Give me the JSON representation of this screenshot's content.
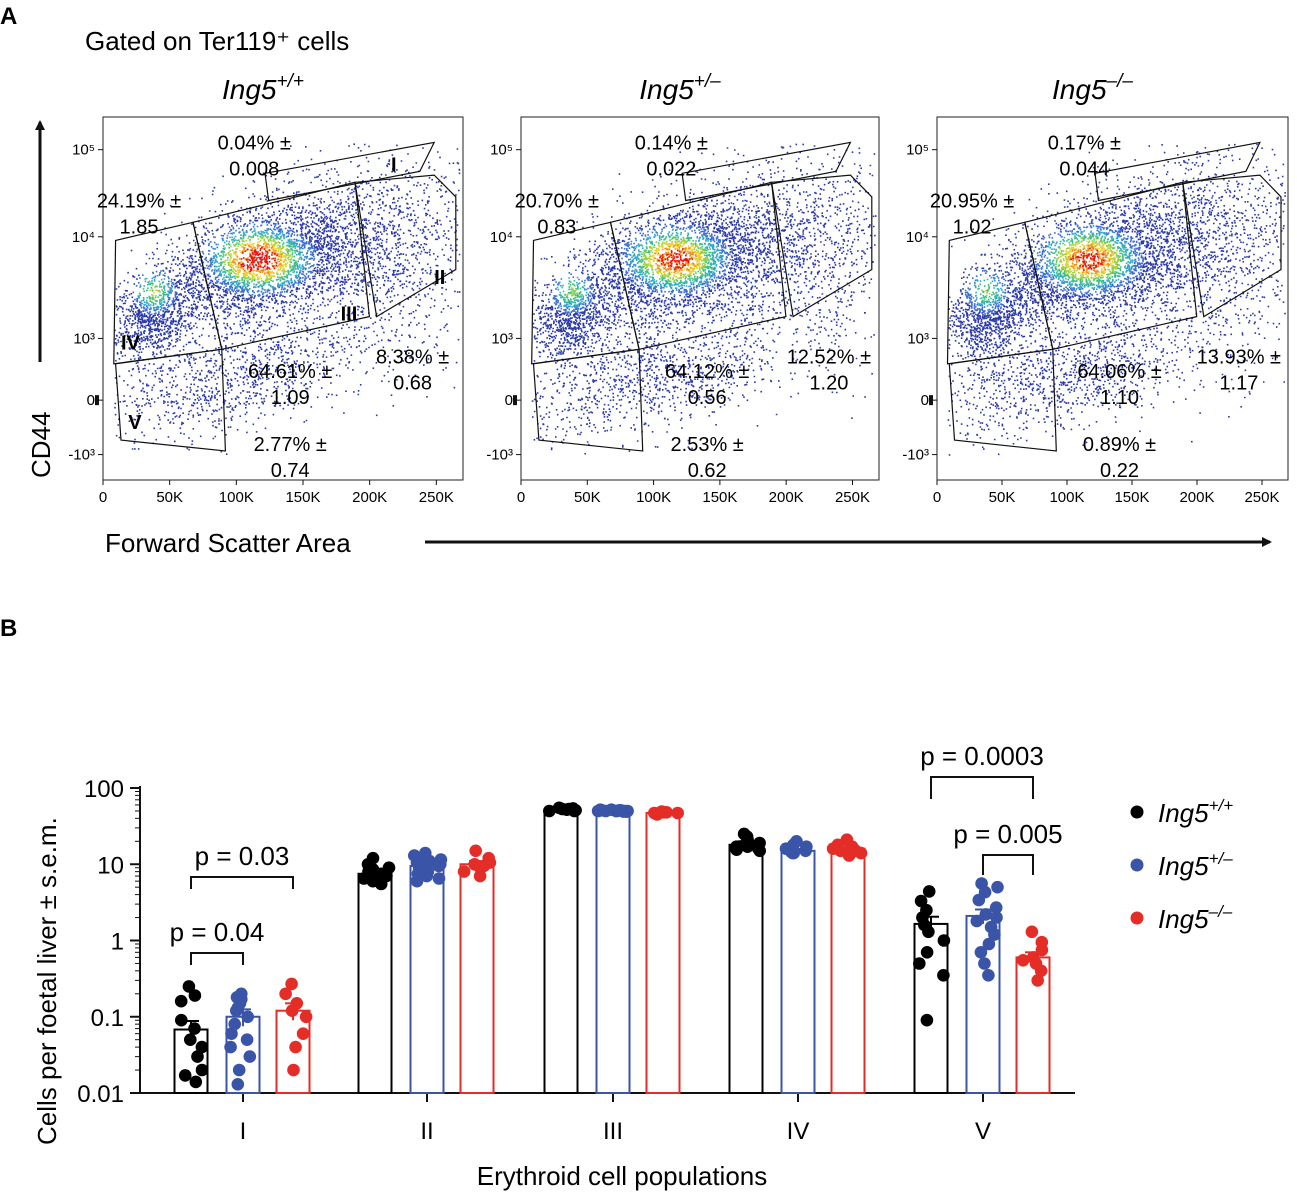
{
  "colors": {
    "wt": "#000000",
    "het": "#3a55a8",
    "ko": "#e52d27",
    "density_low": "#2c3aa8",
    "density_high": "#e3130f"
  },
  "panel_a": {
    "letter": "A",
    "subtitle": "Gated on Ter119⁺ cells",
    "y_axis_title": "CD44",
    "x_axis_title": "Forward Scatter Area",
    "x_ticks": [
      "0",
      "50K",
      "100K",
      "150K",
      "200K",
      "250K"
    ],
    "y_ticks": [
      "10⁵",
      "10⁴",
      "10³",
      "0",
      "-10³"
    ],
    "roman_labels": [
      "I",
      "II",
      "III",
      "IV",
      "V"
    ],
    "plots": [
      {
        "genotype_base": "Ing5",
        "genotype_sup": "+/+",
        "gates": {
          "I": [
            "0.04% ±",
            "0.008"
          ],
          "IV": [
            "24.19% ±",
            "1.85"
          ],
          "III": [
            "64.61% ±",
            "1.09"
          ],
          "II": [
            "8.38% ±",
            "0.68"
          ],
          "V": [
            "2.77% ±",
            "0.74"
          ]
        }
      },
      {
        "genotype_base": "Ing5",
        "genotype_sup": "+/–",
        "gates": {
          "I": [
            "0.14% ±",
            "0.022"
          ],
          "IV": [
            "20.70% ±",
            "0.83"
          ],
          "III": [
            "64.12% ±",
            "0.56"
          ],
          "II": [
            "12.52% ±",
            "1.20"
          ],
          "V": [
            "2.53% ±",
            "0.62"
          ]
        }
      },
      {
        "genotype_base": "Ing5",
        "genotype_sup": "–/–",
        "gates": {
          "I": [
            "0.17% ±",
            "0.044"
          ],
          "IV": [
            "20.95% ±",
            "1.02"
          ],
          "III": [
            "64.06% ±",
            "1.10"
          ],
          "II": [
            "13.93% ±",
            "1.17"
          ],
          "V": [
            "0.89% ±",
            "0.22"
          ]
        }
      }
    ]
  },
  "chart_data": {
    "type": "bar",
    "panel_letter": "B",
    "title": "",
    "xlabel": "Erythroid cell populations",
    "ylabel": "Cells per foetal liver ± s.e.m.",
    "yscale": "log",
    "ylim": [
      0.01,
      100
    ],
    "y_ticks": [
      0.01,
      0.1,
      1,
      10,
      100
    ],
    "y_tick_labels": [
      "0.01",
      "0.1",
      "1",
      "10",
      "100"
    ],
    "categories": [
      "I",
      "II",
      "III",
      "IV",
      "V"
    ],
    "series": [
      {
        "name": "Ing5+/+",
        "legend_base": "Ing5",
        "legend_sup": "+/+",
        "color": "#000000",
        "means": [
          0.068,
          7.5,
          52,
          18,
          1.65
        ],
        "sem": [
          0.02,
          1.0,
          1.5,
          2.0,
          0.4
        ],
        "points": [
          [
            0.25,
            0.19,
            0.16,
            0.09,
            0.07,
            0.05,
            0.04,
            0.03,
            0.02,
            0.017,
            0.014
          ],
          [
            12,
            10,
            9,
            8.5,
            8,
            7.5,
            7,
            6.5,
            6,
            5.5,
            7.2
          ],
          [
            55,
            54,
            53,
            52,
            51,
            50,
            52,
            53,
            51,
            50
          ],
          [
            25,
            23,
            21,
            19,
            18,
            17,
            16,
            15,
            17,
            19,
            15.5
          ],
          [
            4.4,
            3.3,
            2.5,
            2.0,
            1.6,
            1.3,
            1.0,
            0.7,
            0.5,
            0.35,
            0.09
          ]
        ]
      },
      {
        "name": "Ing5+/-",
        "legend_base": "Ing5",
        "legend_sup": "+/–",
        "color": "#3a55a8",
        "means": [
          0.1,
          9.5,
          50,
          15,
          2.1
        ],
        "sem": [
          0.025,
          1.2,
          1.2,
          0.8,
          0.45
        ],
        "points": [
          [
            0.2,
            0.17,
            0.15,
            0.13,
            0.12,
            0.1,
            0.08,
            0.06,
            0.05,
            0.04,
            0.03,
            0.02,
            0.013,
            0.18
          ],
          [
            14,
            13,
            12,
            11,
            10,
            9.5,
            9,
            8,
            7.5,
            7,
            6.5,
            6,
            10.5,
            11.5
          ],
          [
            52,
            51,
            50,
            49,
            50,
            51,
            50,
            49,
            51,
            50,
            52,
            49,
            50,
            50
          ],
          [
            20,
            18,
            17,
            16,
            15.5,
            15,
            14.5,
            14,
            14,
            15,
            16,
            15
          ],
          [
            5.6,
            5,
            4.3,
            3.4,
            2.7,
            2.2,
            1.8,
            1.5,
            1.2,
            0.9,
            0.7,
            0.5,
            0.35,
            2.0
          ]
        ]
      },
      {
        "name": "Ing5-/-",
        "legend_base": "Ing5",
        "legend_sup": "–/–",
        "color": "#e52d27",
        "means": [
          0.12,
          10,
          47,
          16,
          0.6
        ],
        "sem": [
          0.03,
          1.0,
          1.0,
          1.0,
          0.1
        ],
        "points": [
          [
            0.27,
            0.2,
            0.15,
            0.12,
            0.1,
            0.06,
            0.04,
            0.02
          ],
          [
            15,
            12,
            10,
            9.5,
            9,
            8,
            7,
            10.5
          ],
          [
            49,
            48,
            47,
            47,
            46,
            45,
            48,
            46
          ],
          [
            21,
            18,
            16,
            15,
            14,
            13,
            17,
            15
          ],
          [
            1.3,
            0.95,
            0.75,
            0.6,
            0.5,
            0.4,
            0.3,
            0.55
          ]
        ]
      }
    ],
    "significance": [
      {
        "label": "p = 0.03",
        "category": "I",
        "from": "Ing5+/+",
        "to": "Ing5-/-"
      },
      {
        "label": "p = 0.04",
        "category": "I",
        "from": "Ing5+/+",
        "to": "Ing5+/-"
      },
      {
        "label": "p = 0.0003",
        "category": "V",
        "from": "Ing5+/+",
        "to": "Ing5-/-"
      },
      {
        "label": "p = 0.005",
        "category": "V",
        "from": "Ing5+/-",
        "to": "Ing5-/-"
      }
    ]
  }
}
